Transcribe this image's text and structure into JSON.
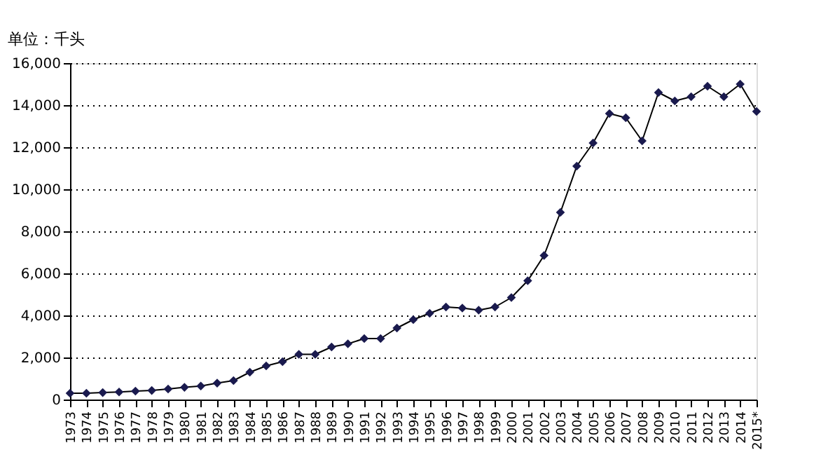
{
  "chart_data": {
    "type": "line",
    "ylabel": "单位：千头",
    "categories": [
      "1973",
      "1974",
      "1975",
      "1976",
      "1977",
      "1978",
      "1979",
      "1980",
      "1981",
      "1982",
      "1983",
      "1984",
      "1985",
      "1986",
      "1987",
      "1988",
      "1989",
      "1990",
      "1991",
      "1992",
      "1993",
      "1994",
      "1995",
      "1996",
      "1997",
      "1998",
      "1999",
      "2000",
      "2001",
      "2002",
      "2003",
      "2004",
      "2005",
      "2006",
      "2007",
      "2008",
      "2009",
      "2010",
      "2011",
      "2012",
      "2013",
      "2014",
      "2015*"
    ],
    "series": [
      {
        "color": "#1a1a4e",
        "values": [
          300,
          300,
          330,
          360,
          400,
          430,
          500,
          580,
          640,
          780,
          900,
          1300,
          1600,
          1800,
          2150,
          2150,
          2500,
          2650,
          2900,
          2900,
          3400,
          3800,
          4100,
          4400,
          4350,
          4250,
          4400,
          4850,
          5650,
          6850,
          8900,
          11100,
          12200,
          13600,
          13400,
          12300,
          14600,
          14200,
          14400,
          14900,
          14400,
          15000,
          13700
        ]
      }
    ],
    "ylim": [
      0,
      16000
    ],
    "yticks": [
      0,
      {
        "value": 2000,
        "label": "2,000"
      },
      {
        "value": 4000,
        "label": "4,000"
      },
      {
        "value": 6000,
        "label": "6,000"
      },
      {
        "value": 8000,
        "label": "8,000"
      },
      {
        "value": 10000,
        "label": "10,000"
      },
      {
        "value": 12000,
        "label": "12,000"
      },
      {
        "value": 14000,
        "label": "14,000"
      },
      {
        "value": 16000,
        "label": "16,000"
      }
    ],
    "grid": "y",
    "marker": "diamond",
    "line_style": "solid"
  }
}
